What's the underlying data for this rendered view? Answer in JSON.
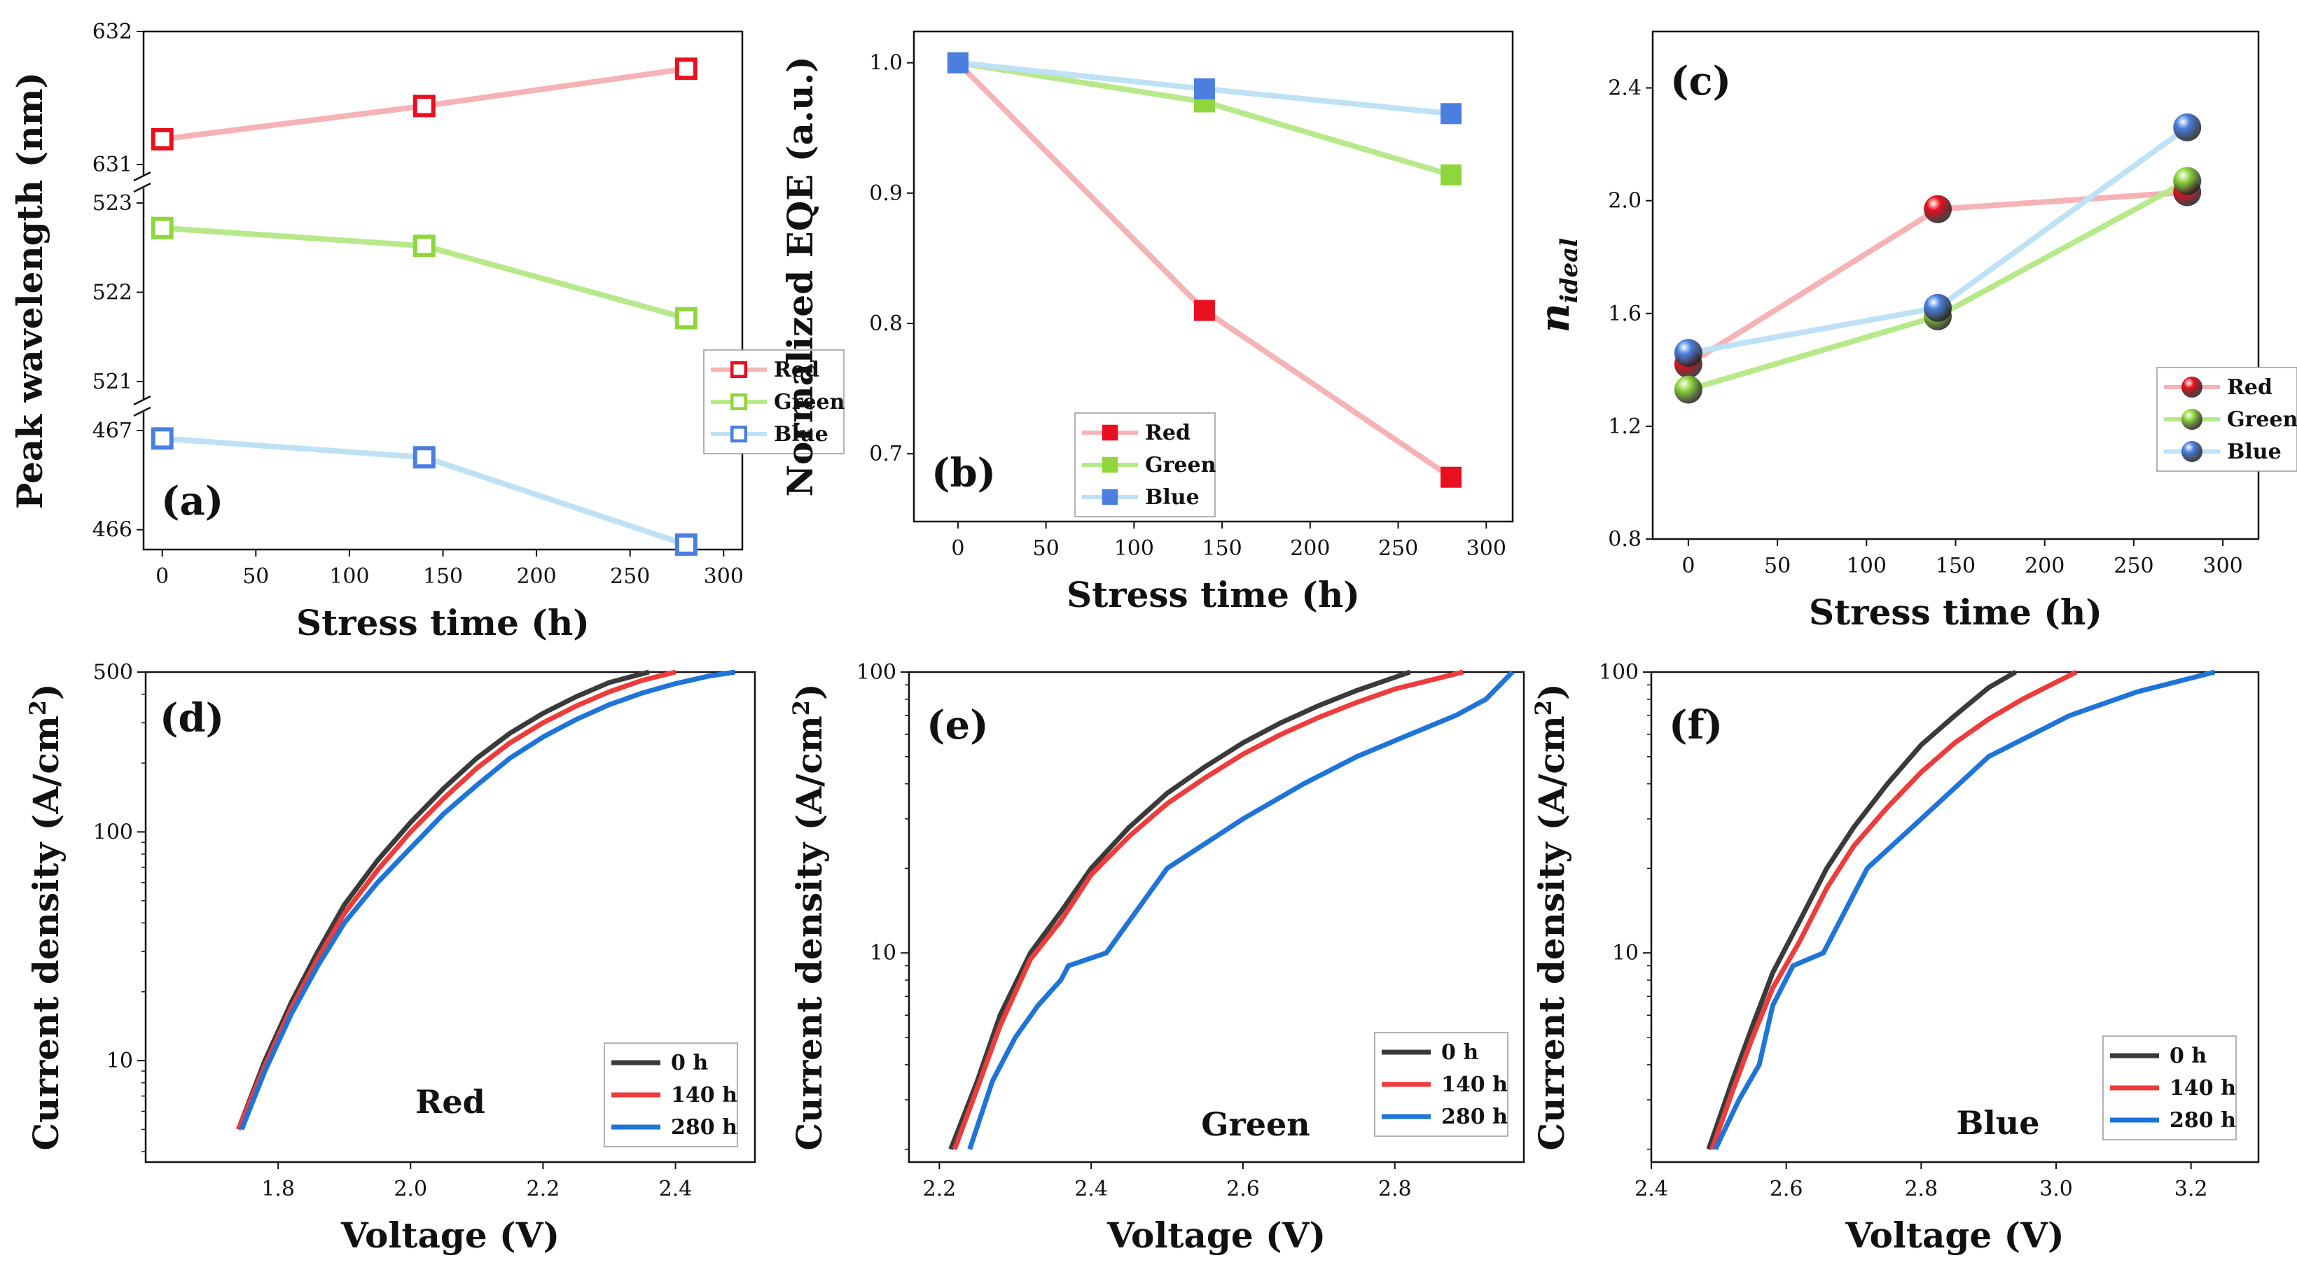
{
  "colors": {
    "red": "#e8101f",
    "green": "#8fd63c",
    "blue": "#4a7fe0",
    "red_line": "#f5b3b6",
    "green_line": "#b7e98a",
    "blue_line": "#bfe1f5",
    "jv_0h": "#3a3a3a",
    "jv_140h": "#ee3b3b",
    "jv_280h": "#1f74d8"
  },
  "chart_data": [
    {
      "id": "a",
      "type": "line",
      "panel_label": "(a)",
      "xlabel": "Stress time (h)",
      "ylabel": "Peak wavelength (nm)",
      "xlim": [
        -10,
        310
      ],
      "xticks": [
        0,
        50,
        100,
        150,
        200,
        250,
        300
      ],
      "broken_y_axis": true,
      "segments": [
        {
          "range": [
            631,
            632
          ],
          "ticks": [
            "631",
            "632"
          ]
        },
        {
          "range": [
            521,
            523
          ],
          "ticks": [
            "521",
            "522",
            "523"
          ]
        },
        {
          "range": [
            465.8,
            467
          ],
          "ticks": [
            "466",
            "467"
          ]
        }
      ],
      "marker": "open-square",
      "x": [
        0,
        140,
        280
      ],
      "series": [
        {
          "name": "Red",
          "values": [
            631.19,
            631.44,
            631.72
          ]
        },
        {
          "name": "Green",
          "values": [
            522.72,
            522.52,
            521.71
          ]
        },
        {
          "name": "Blue",
          "values": [
            466.92,
            466.73,
            465.85
          ]
        }
      ],
      "legend": [
        "Red",
        "Green",
        "Blue"
      ],
      "legend_position": "bottom-right"
    },
    {
      "id": "b",
      "type": "line",
      "panel_label": "(b)",
      "xlabel": "Stress time (h)",
      "ylabel": "Normalized EQE (a.u.)",
      "xlim": [
        -25,
        315
      ],
      "ylim": [
        0.648,
        1.024
      ],
      "xticks": [
        0,
        50,
        100,
        150,
        200,
        250,
        300
      ],
      "yticks": [
        0.7,
        0.8,
        0.9,
        1.0
      ],
      "ytick_labels": [
        "0.7",
        "0.8",
        "0.9",
        "1.0"
      ],
      "marker": "filled-square",
      "x": [
        0,
        140,
        280
      ],
      "series": [
        {
          "name": "Red",
          "values": [
            1.0,
            0.81,
            0.682
          ]
        },
        {
          "name": "Green",
          "values": [
            1.0,
            0.97,
            0.914
          ]
        },
        {
          "name": "Blue",
          "values": [
            1.0,
            0.98,
            0.961
          ]
        }
      ],
      "legend": [
        "Red",
        "Green",
        "Blue"
      ],
      "legend_position": "bottom-left"
    },
    {
      "id": "c",
      "type": "line",
      "panel_label": "(c)",
      "xlabel": "Stress time (h)",
      "ylabel": "n",
      "ylabel_subscript": "ideal",
      "xlim": [
        -20,
        320
      ],
      "ylim": [
        0.8,
        2.6
      ],
      "xticks": [
        0,
        50,
        100,
        150,
        200,
        250,
        300
      ],
      "yticks": [
        0.8,
        1.2,
        1.6,
        2.0,
        2.4
      ],
      "ytick_labels": [
        "0.8",
        "1.2",
        "1.6",
        "2.0",
        "2.4"
      ],
      "marker": "sphere",
      "x": [
        0,
        140,
        280
      ],
      "series": [
        {
          "name": "Red",
          "values": [
            1.42,
            1.97,
            2.03
          ]
        },
        {
          "name": "Green",
          "values": [
            1.33,
            1.59,
            2.07
          ]
        },
        {
          "name": "Blue",
          "values": [
            1.46,
            1.62,
            2.26
          ]
        }
      ],
      "legend": [
        "Red",
        "Green",
        "Blue"
      ],
      "legend_position": "bottom-right"
    },
    {
      "id": "d",
      "type": "line",
      "panel_label": "(d)",
      "annotation": "Red",
      "xlabel": "Voltage (V)",
      "ylabel": "Current density (A/cm",
      "ylabel_sup": "2",
      "ylabel_end": ")",
      "yscale": "log",
      "xlim": [
        1.6,
        2.52
      ],
      "ylim": [
        3.6,
        500
      ],
      "xticks": [
        1.8,
        2.0,
        2.2,
        2.4
      ],
      "xtick_labels": [
        "1.8",
        "2.0",
        "2.2",
        "2.4"
      ],
      "yticks": [
        10,
        100,
        500
      ],
      "ytick_labels": [
        "10",
        "100",
        "500"
      ],
      "series": [
        {
          "name": "0 h",
          "x": [
            1.74,
            1.78,
            1.82,
            1.86,
            1.9,
            1.95,
            2.0,
            2.05,
            2.1,
            2.15,
            2.2,
            2.25,
            2.3,
            2.36
          ],
          "values": [
            5,
            10,
            18,
            30,
            48,
            75,
            110,
            155,
            210,
            270,
            330,
            390,
            450,
            500
          ]
        },
        {
          "name": "140 h",
          "x": [
            1.74,
            1.78,
            1.82,
            1.86,
            1.9,
            1.95,
            2.0,
            2.05,
            2.1,
            2.15,
            2.2,
            2.25,
            2.3,
            2.35,
            2.4
          ],
          "values": [
            5,
            9.5,
            17,
            28,
            44,
            68,
            100,
            140,
            190,
            245,
            300,
            355,
            410,
            460,
            500
          ]
        },
        {
          "name": "280 h",
          "x": [
            1.745,
            1.78,
            1.82,
            1.86,
            1.9,
            1.95,
            2.0,
            2.05,
            2.1,
            2.15,
            2.2,
            2.25,
            2.3,
            2.35,
            2.4,
            2.45,
            2.49
          ],
          "values": [
            5,
            9,
            16,
            26,
            40,
            60,
            85,
            120,
            160,
            210,
            260,
            310,
            360,
            405,
            445,
            480,
            500
          ]
        }
      ],
      "legend": [
        "0 h",
        "140 h",
        "280 h"
      ],
      "legend_position": "bottom-right"
    },
    {
      "id": "e",
      "type": "line",
      "panel_label": "(e)",
      "annotation": "Green",
      "xlabel": "Voltage (V)",
      "ylabel": "Current density (A/cm",
      "ylabel_sup": "2",
      "ylabel_end": ")",
      "yscale": "log",
      "xlim": [
        2.16,
        2.97
      ],
      "ylim": [
        1.8,
        100
      ],
      "xticks": [
        2.2,
        2.4,
        2.6,
        2.8
      ],
      "xtick_labels": [
        "2.2",
        "2.4",
        "2.6",
        "2.8"
      ],
      "yticks": [
        10,
        100
      ],
      "ytick_labels": [
        "10",
        "100"
      ],
      "series": [
        {
          "name": "0 h",
          "x": [
            2.215,
            2.25,
            2.28,
            2.32,
            2.36,
            2.4,
            2.45,
            2.5,
            2.55,
            2.6,
            2.65,
            2.7,
            2.75,
            2.82
          ],
          "values": [
            2,
            3.5,
            6,
            10,
            14,
            20,
            28,
            37,
            46,
            56,
            66,
            76,
            86,
            100
          ]
        },
        {
          "name": "140 h",
          "x": [
            2.22,
            2.25,
            2.28,
            2.32,
            2.36,
            2.4,
            2.45,
            2.5,
            2.55,
            2.6,
            2.65,
            2.7,
            2.75,
            2.8,
            2.89
          ],
          "values": [
            2,
            3.3,
            5.5,
            9.5,
            13,
            19,
            26,
            34,
            42,
            51,
            60,
            69,
            78,
            87,
            100
          ]
        },
        {
          "name": "280 h",
          "x": [
            2.24,
            2.27,
            2.3,
            2.33,
            2.36,
            2.37,
            2.42,
            2.5,
            2.6,
            2.68,
            2.75,
            2.82,
            2.88,
            2.92,
            2.955
          ],
          "values": [
            2,
            3.5,
            5,
            6.5,
            8,
            9,
            10,
            20,
            30,
            40,
            50,
            60,
            70,
            80,
            100
          ]
        }
      ],
      "legend": [
        "0 h",
        "140 h",
        "280 h"
      ],
      "legend_position": "bottom-right"
    },
    {
      "id": "f",
      "type": "line",
      "panel_label": "(f)",
      "annotation": "Blue",
      "xlabel": "Voltage (V)",
      "ylabel": "Current density (A/cm",
      "ylabel_sup": "2",
      "ylabel_end": ")",
      "yscale": "log",
      "xlim": [
        2.4,
        3.3
      ],
      "ylim": [
        1.8,
        100
      ],
      "xticks": [
        2.4,
        2.6,
        2.8,
        3.0,
        3.2
      ],
      "xtick_labels": [
        "2.4",
        "2.6",
        "2.8",
        "3.0",
        "3.2"
      ],
      "yticks": [
        10,
        100
      ],
      "ytick_labels": [
        "10",
        "100"
      ],
      "series": [
        {
          "name": "0 h",
          "x": [
            2.485,
            2.52,
            2.55,
            2.58,
            2.62,
            2.66,
            2.7,
            2.75,
            2.8,
            2.85,
            2.9,
            2.94
          ],
          "values": [
            2,
            3.5,
            5.5,
            8.5,
            13,
            20,
            28,
            40,
            55,
            70,
            88,
            100
          ]
        },
        {
          "name": "140 h",
          "x": [
            2.49,
            2.52,
            2.55,
            2.58,
            2.62,
            2.66,
            2.7,
            2.75,
            2.8,
            2.85,
            2.9,
            2.95,
            3.0,
            3.03
          ],
          "values": [
            2,
            3.2,
            5,
            7.5,
            11,
            17,
            24,
            33,
            44,
            56,
            68,
            80,
            92,
            100
          ]
        },
        {
          "name": "280 h",
          "x": [
            2.495,
            2.53,
            2.56,
            2.58,
            2.61,
            2.655,
            2.72,
            2.8,
            2.9,
            3.02,
            3.12,
            3.235
          ],
          "values": [
            2,
            3,
            4,
            6.5,
            9,
            10,
            20,
            30,
            50,
            70,
            85,
            100
          ]
        }
      ],
      "legend": [
        "0 h",
        "140 h",
        "280 h"
      ],
      "legend_position": "bottom-right"
    }
  ]
}
